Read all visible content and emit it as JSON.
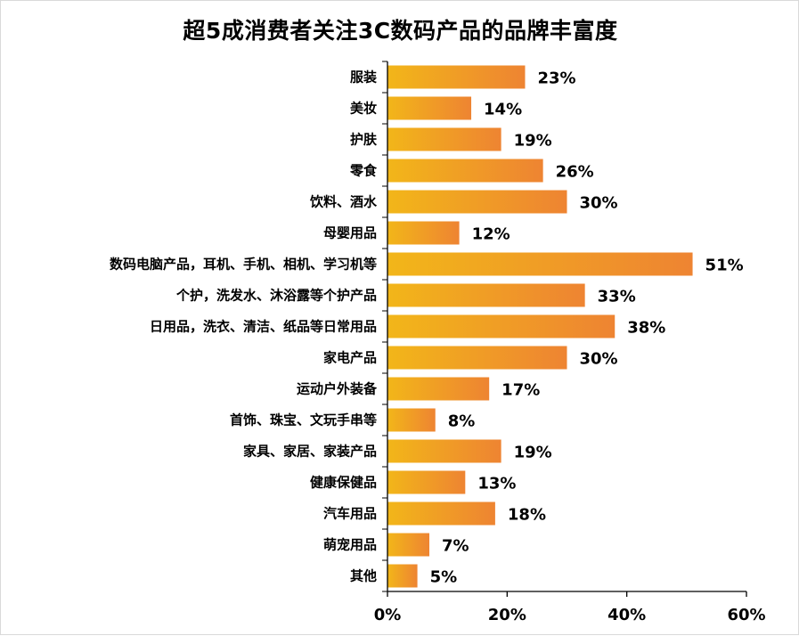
{
  "chart_data": {
    "type": "bar",
    "orientation": "horizontal",
    "title": "超5成消费者关注3C数码产品的品牌丰富度",
    "categories": [
      "服装",
      "美妆",
      "护肤",
      "零食",
      "饮料、酒水",
      "母婴用品",
      "数码电脑产品，耳机、手机、相机、学习机等",
      "个护，洗发水、沐浴露等个护产品",
      "日用品，洗衣、清洁、纸品等日常用品",
      "家电产品",
      "运动户外装备",
      "首饰、珠宝、文玩手串等",
      "家具、家居、家装产品",
      "健康保健品",
      "汽车用品",
      "萌宠用品",
      "其他"
    ],
    "values": [
      23,
      14,
      19,
      26,
      30,
      12,
      51,
      33,
      38,
      30,
      17,
      8,
      19,
      13,
      18,
      7,
      5
    ],
    "value_labels": [
      "23%",
      "14%",
      "19%",
      "26%",
      "30%",
      "12%",
      "51%",
      "33%",
      "38%",
      "30%",
      "17%",
      "8%",
      "19%",
      "13%",
      "18%",
      "7%",
      "5%"
    ],
    "xlim": [
      0,
      60
    ],
    "x_ticks": [
      0,
      20,
      40,
      60
    ],
    "x_tick_labels": [
      "0%",
      "20%",
      "40%",
      "60%"
    ],
    "xlabel": "",
    "ylabel": "",
    "grid": false,
    "legend": "none",
    "bar_color_start": "#F2B619",
    "bar_color_end": "#EE8432"
  }
}
